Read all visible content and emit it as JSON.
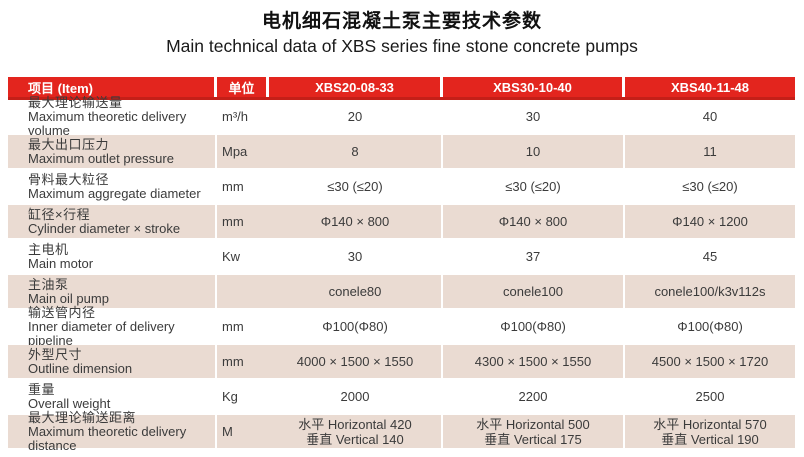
{
  "title": {
    "cn": "电机细石混凝土泵主要技术参数",
    "en": "Main technical data of XBS series fine stone concrete pumps"
  },
  "colors": {
    "header_bg": "#e3251e",
    "header_border": "#c41f18",
    "alt_row_bg": "#eadbd2",
    "header_text": "#ffffff",
    "body_text": "#3b3b3b"
  },
  "table": {
    "header": {
      "item": "项目  (Item)",
      "unit": "单位",
      "models": [
        "XBS20-08-33",
        "XBS30-10-40",
        "XBS40-11-48"
      ]
    },
    "rows": [
      {
        "cn": "最大理论输送量",
        "en": "Maximum theoretic delivery volume",
        "unit": "m³/h",
        "v1": "20",
        "v2": "30",
        "v3": "40"
      },
      {
        "cn": "最大出口压力",
        "en": "Maximum outlet pressure",
        "unit": "Mpa",
        "v1": "8",
        "v2": "10",
        "v3": "11"
      },
      {
        "cn": "骨料最大粒径",
        "en": "Maximum aggregate diameter",
        "unit": "mm",
        "v1": "≤30 (≤20)",
        "v2": "≤30 (≤20)",
        "v3": "≤30 (≤20)"
      },
      {
        "cn": "缸径×行程",
        "en": "Cylinder diameter × stroke",
        "unit": "mm",
        "v1": "Φ140 × 800",
        "v2": "Φ140 × 800",
        "v3": "Φ140 × 1200"
      },
      {
        "cn": "主电机",
        "en": "Main motor",
        "unit": "Kw",
        "v1": "30",
        "v2": "37",
        "v3": "45"
      },
      {
        "cn": "主油泵",
        "en": "Main oil pump",
        "unit": "",
        "v1": "conele80",
        "v2": "conele100",
        "v3": "conele100/k3v112s"
      },
      {
        "cn": "输送管内径",
        "en": "Inner diameter of delivery pipeline",
        "unit": "mm",
        "v1": "Φ100(Φ80)",
        "v2": "Φ100(Φ80)",
        "v3": "Φ100(Φ80)"
      },
      {
        "cn": "外型尺寸",
        "en": "Outline dimension",
        "unit": "mm",
        "v1": "4000 × 1500 × 1550",
        "v2": "4300 × 1500 × 1550",
        "v3": "4500 × 1500 × 1720"
      },
      {
        "cn": "重量",
        "en": "Overall weight",
        "unit": "Kg",
        "v1": "2000",
        "v2": "2200",
        "v3": "2500"
      },
      {
        "cn": "最大理论输送距离",
        "en": "Maximum theoretic delivery distance",
        "unit": "M",
        "v1": "水平 Horizontal 420\n垂直 Vertical 140",
        "v2": "水平 Horizontal 500\n垂直 Vertical 175",
        "v3": "水平 Horizontal 570\n垂直 Vertical 190"
      }
    ]
  }
}
